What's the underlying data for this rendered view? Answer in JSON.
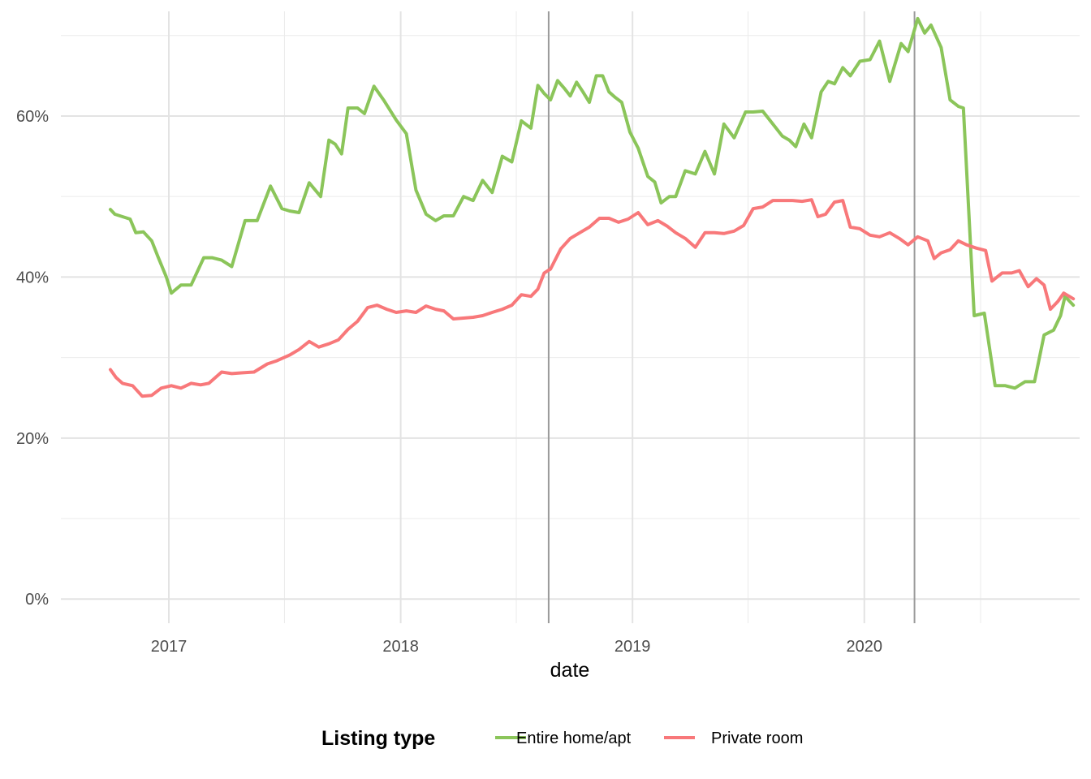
{
  "chart_data": {
    "type": "line",
    "title": "",
    "xlabel": "date",
    "ylabel": "",
    "x_ticks": [
      "2017",
      "2018",
      "2019",
      "2020"
    ],
    "y_ticks": [
      "0%",
      "20%",
      "40%",
      "60%"
    ],
    "ylim": [
      -0.03,
      0.73
    ],
    "xlim": [
      "2016-07-15",
      "2020-12-05"
    ],
    "y_format": "percent",
    "grid": true,
    "legend_position": "bottom",
    "legend_title": "Listing type",
    "vertical_lines": [
      "2018-08-22",
      "2020-03-20"
    ],
    "series": [
      {
        "name": "Entire home/apt",
        "color": "#8BC55A",
        "points": [
          [
            "2016-10-01",
            0.484
          ],
          [
            "2016-10-08",
            0.478
          ],
          [
            "2016-10-20",
            0.475
          ],
          [
            "2016-11-01",
            0.472
          ],
          [
            "2016-11-10",
            0.455
          ],
          [
            "2016-11-22",
            0.456
          ],
          [
            "2016-12-05",
            0.445
          ],
          [
            "2016-12-15",
            0.425
          ],
          [
            "2016-12-28",
            0.4
          ],
          [
            "2017-01-05",
            0.38
          ],
          [
            "2017-01-20",
            0.39
          ],
          [
            "2017-02-05",
            0.39
          ],
          [
            "2017-02-25",
            0.424
          ],
          [
            "2017-03-10",
            0.424
          ],
          [
            "2017-03-25",
            0.421
          ],
          [
            "2017-04-10",
            0.413
          ],
          [
            "2017-05-01",
            0.47
          ],
          [
            "2017-05-20",
            0.47
          ],
          [
            "2017-06-10",
            0.513
          ],
          [
            "2017-06-28",
            0.485
          ],
          [
            "2017-07-10",
            0.482
          ],
          [
            "2017-07-25",
            0.48
          ],
          [
            "2017-08-10",
            0.517
          ],
          [
            "2017-08-28",
            0.5
          ],
          [
            "2017-09-10",
            0.57
          ],
          [
            "2017-09-20",
            0.565
          ],
          [
            "2017-09-30",
            0.553
          ],
          [
            "2017-10-10",
            0.61
          ],
          [
            "2017-10-25",
            0.61
          ],
          [
            "2017-11-05",
            0.603
          ],
          [
            "2017-11-20",
            0.637
          ],
          [
            "2017-12-05",
            0.62
          ],
          [
            "2017-12-25",
            0.595
          ],
          [
            "2018-01-10",
            0.578
          ],
          [
            "2018-01-25",
            0.508
          ],
          [
            "2018-02-10",
            0.478
          ],
          [
            "2018-02-25",
            0.47
          ],
          [
            "2018-03-10",
            0.476
          ],
          [
            "2018-03-25",
            0.476
          ],
          [
            "2018-04-10",
            0.5
          ],
          [
            "2018-04-25",
            0.495
          ],
          [
            "2018-05-10",
            0.52
          ],
          [
            "2018-05-25",
            0.505
          ],
          [
            "2018-06-10",
            0.55
          ],
          [
            "2018-06-25",
            0.543
          ],
          [
            "2018-07-10",
            0.594
          ],
          [
            "2018-07-25",
            0.585
          ],
          [
            "2018-08-05",
            0.638
          ],
          [
            "2018-08-15",
            0.628
          ],
          [
            "2018-08-25",
            0.62
          ],
          [
            "2018-09-05",
            0.644
          ],
          [
            "2018-09-15",
            0.635
          ],
          [
            "2018-09-25",
            0.625
          ],
          [
            "2018-10-05",
            0.642
          ],
          [
            "2018-10-15",
            0.63
          ],
          [
            "2018-10-25",
            0.617
          ],
          [
            "2018-11-05",
            0.65
          ],
          [
            "2018-11-15",
            0.65
          ],
          [
            "2018-11-25",
            0.63
          ],
          [
            "2018-12-05",
            0.623
          ],
          [
            "2018-12-15",
            0.617
          ],
          [
            "2018-12-28",
            0.58
          ],
          [
            "2019-01-10",
            0.56
          ],
          [
            "2019-01-25",
            0.525
          ],
          [
            "2019-02-05",
            0.518
          ],
          [
            "2019-02-15",
            0.492
          ],
          [
            "2019-02-28",
            0.5
          ],
          [
            "2019-03-10",
            0.5
          ],
          [
            "2019-03-25",
            0.532
          ],
          [
            "2019-04-10",
            0.528
          ],
          [
            "2019-04-25",
            0.556
          ],
          [
            "2019-05-10",
            0.528
          ],
          [
            "2019-05-25",
            0.59
          ],
          [
            "2019-06-10",
            0.573
          ],
          [
            "2019-06-28",
            0.605
          ],
          [
            "2019-07-10",
            0.605
          ],
          [
            "2019-07-25",
            0.606
          ],
          [
            "2019-08-10",
            0.59
          ],
          [
            "2019-08-25",
            0.575
          ],
          [
            "2019-09-05",
            0.57
          ],
          [
            "2019-09-15",
            0.562
          ],
          [
            "2019-09-28",
            0.59
          ],
          [
            "2019-10-10",
            0.573
          ],
          [
            "2019-10-25",
            0.63
          ],
          [
            "2019-11-05",
            0.643
          ],
          [
            "2019-11-15",
            0.64
          ],
          [
            "2019-11-28",
            0.66
          ],
          [
            "2019-12-10",
            0.65
          ],
          [
            "2019-12-25",
            0.668
          ],
          [
            "2020-01-10",
            0.67
          ],
          [
            "2020-01-25",
            0.693
          ],
          [
            "2020-02-10",
            0.643
          ],
          [
            "2020-02-28",
            0.69
          ],
          [
            "2020-03-10",
            0.68
          ],
          [
            "2020-03-25",
            0.721
          ],
          [
            "2020-04-05",
            0.703
          ],
          [
            "2020-04-15",
            0.713
          ],
          [
            "2020-05-01",
            0.685
          ],
          [
            "2020-05-15",
            0.62
          ],
          [
            "2020-05-28",
            0.612
          ],
          [
            "2020-06-05",
            0.61
          ],
          [
            "2020-06-22",
            0.352
          ],
          [
            "2020-07-08",
            0.355
          ],
          [
            "2020-07-25",
            0.265
          ],
          [
            "2020-08-10",
            0.265
          ],
          [
            "2020-08-25",
            0.262
          ],
          [
            "2020-09-10",
            0.27
          ],
          [
            "2020-09-25",
            0.27
          ],
          [
            "2020-10-10",
            0.328
          ],
          [
            "2020-10-25",
            0.334
          ],
          [
            "2020-11-05",
            0.352
          ],
          [
            "2020-11-12",
            0.376
          ],
          [
            "2020-11-25",
            0.365
          ]
        ]
      },
      {
        "name": "Private room",
        "color": "#F8787A",
        "points": [
          [
            "2016-10-01",
            0.285
          ],
          [
            "2016-10-10",
            0.275
          ],
          [
            "2016-10-20",
            0.268
          ],
          [
            "2016-11-05",
            0.265
          ],
          [
            "2016-11-20",
            0.252
          ],
          [
            "2016-12-05",
            0.253
          ],
          [
            "2016-12-20",
            0.262
          ],
          [
            "2017-01-05",
            0.265
          ],
          [
            "2017-01-20",
            0.262
          ],
          [
            "2017-02-05",
            0.268
          ],
          [
            "2017-02-20",
            0.266
          ],
          [
            "2017-03-05",
            0.268
          ],
          [
            "2017-03-25",
            0.282
          ],
          [
            "2017-04-10",
            0.28
          ],
          [
            "2017-04-25",
            0.281
          ],
          [
            "2017-05-15",
            0.282
          ],
          [
            "2017-06-05",
            0.292
          ],
          [
            "2017-06-20",
            0.296
          ],
          [
            "2017-07-10",
            0.303
          ],
          [
            "2017-07-25",
            0.31
          ],
          [
            "2017-08-10",
            0.32
          ],
          [
            "2017-08-25",
            0.313
          ],
          [
            "2017-09-10",
            0.317
          ],
          [
            "2017-09-25",
            0.322
          ],
          [
            "2017-10-10",
            0.335
          ],
          [
            "2017-10-25",
            0.345
          ],
          [
            "2017-11-10",
            0.362
          ],
          [
            "2017-11-25",
            0.365
          ],
          [
            "2017-12-10",
            0.36
          ],
          [
            "2017-12-25",
            0.356
          ],
          [
            "2018-01-10",
            0.358
          ],
          [
            "2018-01-25",
            0.356
          ],
          [
            "2018-02-10",
            0.364
          ],
          [
            "2018-02-25",
            0.36
          ],
          [
            "2018-03-10",
            0.358
          ],
          [
            "2018-03-25",
            0.348
          ],
          [
            "2018-04-10",
            0.349
          ],
          [
            "2018-04-25",
            0.35
          ],
          [
            "2018-05-10",
            0.352
          ],
          [
            "2018-05-25",
            0.356
          ],
          [
            "2018-06-10",
            0.36
          ],
          [
            "2018-06-25",
            0.365
          ],
          [
            "2018-07-10",
            0.378
          ],
          [
            "2018-07-25",
            0.376
          ],
          [
            "2018-08-05",
            0.385
          ],
          [
            "2018-08-15",
            0.405
          ],
          [
            "2018-08-25",
            0.41
          ],
          [
            "2018-09-10",
            0.435
          ],
          [
            "2018-09-25",
            0.448
          ],
          [
            "2018-10-10",
            0.455
          ],
          [
            "2018-10-25",
            0.462
          ],
          [
            "2018-11-10",
            0.473
          ],
          [
            "2018-11-25",
            0.473
          ],
          [
            "2018-12-10",
            0.468
          ],
          [
            "2018-12-25",
            0.472
          ],
          [
            "2019-01-10",
            0.48
          ],
          [
            "2019-01-25",
            0.465
          ],
          [
            "2019-02-10",
            0.47
          ],
          [
            "2019-02-25",
            0.463
          ],
          [
            "2019-03-10",
            0.455
          ],
          [
            "2019-03-25",
            0.448
          ],
          [
            "2019-04-10",
            0.437
          ],
          [
            "2019-04-25",
            0.455
          ],
          [
            "2019-05-10",
            0.455
          ],
          [
            "2019-05-25",
            0.454
          ],
          [
            "2019-06-10",
            0.457
          ],
          [
            "2019-06-25",
            0.464
          ],
          [
            "2019-07-10",
            0.485
          ],
          [
            "2019-07-25",
            0.487
          ],
          [
            "2019-08-10",
            0.495
          ],
          [
            "2019-08-25",
            0.495
          ],
          [
            "2019-09-10",
            0.495
          ],
          [
            "2019-09-25",
            0.494
          ],
          [
            "2019-10-10",
            0.496
          ],
          [
            "2019-10-20",
            0.475
          ],
          [
            "2019-11-01",
            0.478
          ],
          [
            "2019-11-15",
            0.493
          ],
          [
            "2019-11-28",
            0.495
          ],
          [
            "2019-12-10",
            0.462
          ],
          [
            "2019-12-25",
            0.46
          ],
          [
            "2020-01-10",
            0.452
          ],
          [
            "2020-01-25",
            0.45
          ],
          [
            "2020-02-10",
            0.455
          ],
          [
            "2020-02-25",
            0.448
          ],
          [
            "2020-03-10",
            0.44
          ],
          [
            "2020-03-25",
            0.45
          ],
          [
            "2020-04-10",
            0.445
          ],
          [
            "2020-04-20",
            0.423
          ],
          [
            "2020-05-01",
            0.43
          ],
          [
            "2020-05-15",
            0.434
          ],
          [
            "2020-05-28",
            0.445
          ],
          [
            "2020-06-10",
            0.44
          ],
          [
            "2020-06-25",
            0.436
          ],
          [
            "2020-07-10",
            0.433
          ],
          [
            "2020-07-20",
            0.395
          ],
          [
            "2020-08-05",
            0.405
          ],
          [
            "2020-08-20",
            0.405
          ],
          [
            "2020-09-01",
            0.408
          ],
          [
            "2020-09-15",
            0.388
          ],
          [
            "2020-09-28",
            0.398
          ],
          [
            "2020-10-10",
            0.39
          ],
          [
            "2020-10-20",
            0.36
          ],
          [
            "2020-11-01",
            0.37
          ],
          [
            "2020-11-10",
            0.38
          ],
          [
            "2020-11-25",
            0.373
          ]
        ]
      }
    ]
  }
}
